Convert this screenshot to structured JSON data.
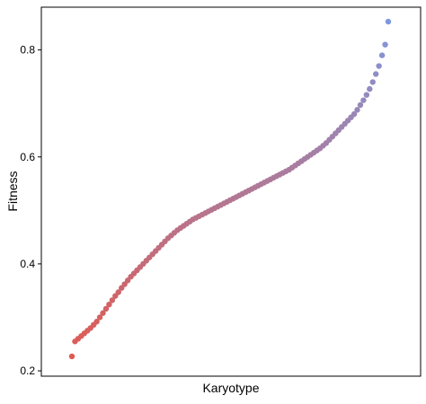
{
  "chart_data": {
    "type": "scatter",
    "title": "",
    "xlabel": "Karyotype",
    "ylabel": "Fitness",
    "x_tick_labels": [],
    "y_ticks": [
      0.2,
      0.4,
      0.6,
      0.8
    ],
    "y_tick_labels": [
      "0.2",
      "0.4",
      "0.6",
      "0.8"
    ],
    "ylim": [
      0.19,
      0.88
    ],
    "xlim": [
      0,
      1
    ],
    "grid": false,
    "legend": "none",
    "x_order": "karyotypes sorted by ascending fitness",
    "color_low": "#e05a52",
    "color_high": "#7f97dc",
    "series": [
      {
        "values": [
          0.227,
          0.255,
          0.26,
          0.265,
          0.27,
          0.275,
          0.28,
          0.286,
          0.292,
          0.3,
          0.308,
          0.316,
          0.324,
          0.332,
          0.34,
          0.347,
          0.355,
          0.362,
          0.369,
          0.376,
          0.382,
          0.388,
          0.394,
          0.4,
          0.406,
          0.412,
          0.418,
          0.424,
          0.43,
          0.436,
          0.442,
          0.448,
          0.453,
          0.458,
          0.463,
          0.467,
          0.471,
          0.475,
          0.479,
          0.483,
          0.486,
          0.489,
          0.492,
          0.495,
          0.498,
          0.501,
          0.504,
          0.507,
          0.51,
          0.513,
          0.516,
          0.519,
          0.522,
          0.525,
          0.528,
          0.531,
          0.534,
          0.537,
          0.54,
          0.543,
          0.546,
          0.549,
          0.552,
          0.555,
          0.558,
          0.561,
          0.564,
          0.567,
          0.57,
          0.573,
          0.576,
          0.58,
          0.584,
          0.588,
          0.592,
          0.596,
          0.6,
          0.604,
          0.608,
          0.612,
          0.616,
          0.621,
          0.626,
          0.632,
          0.638,
          0.644,
          0.65,
          0.656,
          0.662,
          0.668,
          0.674,
          0.68,
          0.688,
          0.697,
          0.706,
          0.716,
          0.727,
          0.74,
          0.755,
          0.77,
          0.79,
          0.81,
          0.853
        ]
      }
    ]
  }
}
